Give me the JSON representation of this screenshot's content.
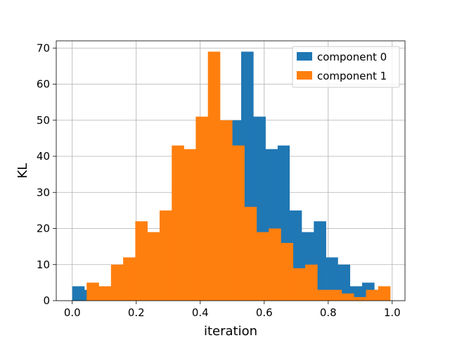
{
  "chart_data": {
    "type": "bar",
    "subtype": "overlaid-histogram",
    "title": "",
    "xlabel": "iteration",
    "ylabel": "KL",
    "xlim": [
      -0.05,
      1.04
    ],
    "ylim": [
      0,
      72
    ],
    "grid": true,
    "legend_position": "top-right",
    "x_ticks": [
      0.0,
      0.2,
      0.4,
      0.6,
      0.8,
      1.0
    ],
    "x_tick_labels": [
      "0.0",
      "0.2",
      "0.4",
      "0.6",
      "0.8",
      "1.0"
    ],
    "y_ticks": [
      0,
      10,
      20,
      30,
      40,
      50,
      60,
      70
    ],
    "y_tick_labels": [
      "0",
      "10",
      "20",
      "30",
      "40",
      "50",
      "60",
      "70"
    ],
    "series": [
      {
        "name": "component 0",
        "color": "#1f77b4",
        "bin_edges": [
          0.0,
          0.038,
          0.075,
          0.113,
          0.151,
          0.189,
          0.226,
          0.264,
          0.302,
          0.34,
          0.377,
          0.415,
          0.453,
          0.491,
          0.528,
          0.566,
          0.604,
          0.642,
          0.679,
          0.717,
          0.755,
          0.793,
          0.83,
          0.868,
          0.906,
          0.944,
          0.981
        ],
        "counts": [
          4,
          3,
          0,
          0,
          0,
          0,
          0,
          0,
          0,
          0,
          0,
          0,
          0,
          50,
          69,
          51,
          42,
          43,
          25,
          19,
          22,
          12,
          10,
          4,
          5,
          3
        ]
      },
      {
        "name": "component 1",
        "color": "#ff7f0e",
        "bin_edges": [
          0.045,
          0.083,
          0.121,
          0.159,
          0.197,
          0.235,
          0.273,
          0.311,
          0.349,
          0.386,
          0.424,
          0.462,
          0.5,
          0.538,
          0.576,
          0.614,
          0.652,
          0.69,
          0.728,
          0.766,
          0.804,
          0.842,
          0.88,
          0.918,
          0.956,
          0.994
        ],
        "counts": [
          5,
          4,
          10,
          12,
          22,
          19,
          25,
          43,
          42,
          51,
          69,
          50,
          43,
          26,
          19,
          20,
          16,
          9,
          10,
          3,
          3,
          2,
          1,
          3,
          4
        ]
      }
    ]
  }
}
